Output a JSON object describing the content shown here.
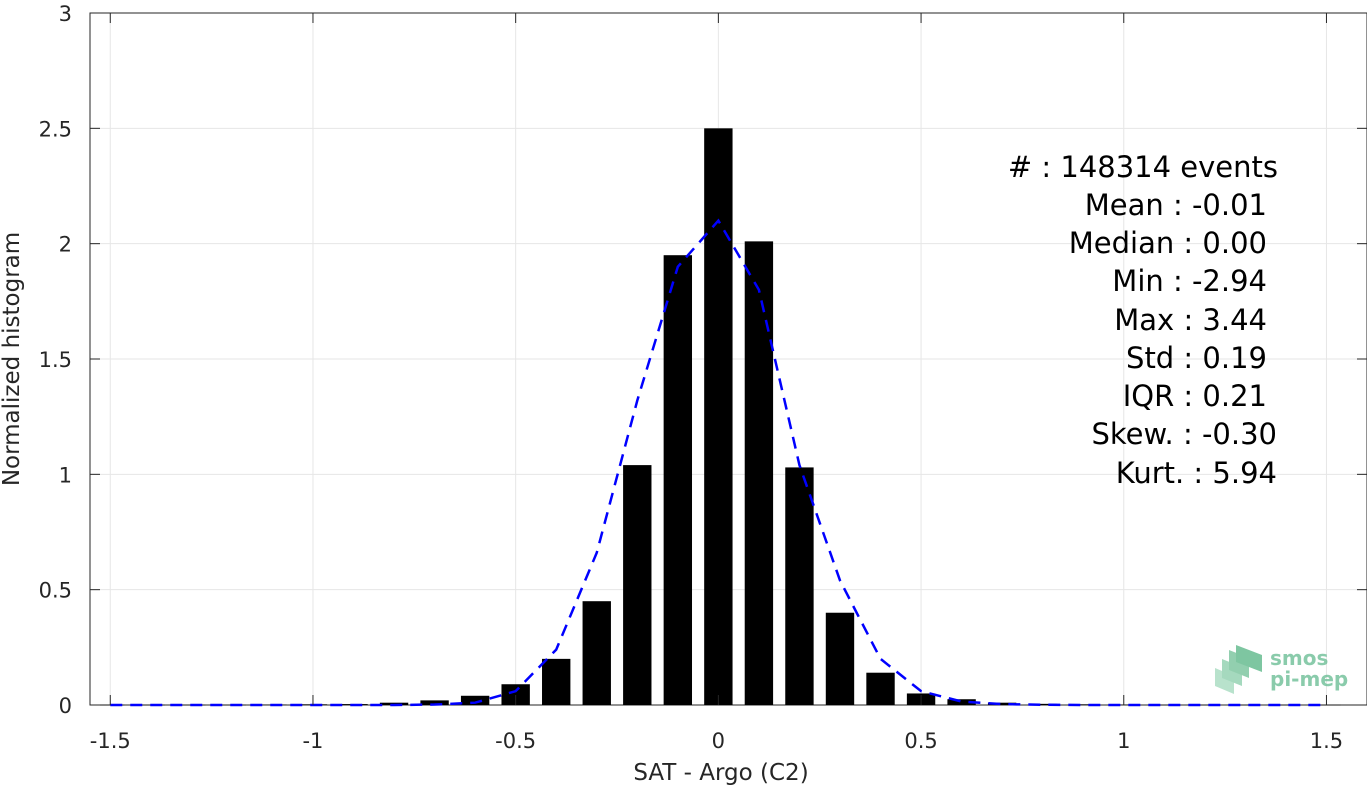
{
  "chart_data": {
    "type": "bar",
    "xlabel": "SAT - Argo (C2)",
    "ylabel": "Normalized histogram",
    "xlim": [
      -1.55,
      1.6
    ],
    "ylim": [
      0,
      3
    ],
    "xticks": [
      "-1.5",
      "-1",
      "-0.5",
      "0",
      "0.5",
      "1",
      "1.5"
    ],
    "yticks": [
      "0",
      "0.5",
      "1",
      "1.5",
      "2",
      "2.5",
      "3"
    ],
    "grid": true,
    "bar_color": "#000000",
    "fit_color": "#0000ff",
    "series": [
      {
        "type": "bar",
        "x": [
          -1.5,
          -1.4,
          -1.3,
          -1.2,
          -1.1,
          -1.0,
          -0.9,
          -0.8,
          -0.7,
          -0.6,
          -0.5,
          -0.4,
          -0.3,
          -0.2,
          -0.1,
          0.0,
          0.1,
          0.2,
          0.3,
          0.4,
          0.5,
          0.6,
          0.7,
          0.8,
          0.9,
          1.0,
          1.1,
          1.2,
          1.3,
          1.4,
          1.5
        ],
        "values": [
          0.001,
          0.001,
          0.001,
          0.001,
          0.002,
          0.003,
          0.004,
          0.01,
          0.02,
          0.04,
          0.09,
          0.2,
          0.45,
          1.04,
          1.95,
          2.5,
          2.01,
          1.03,
          0.4,
          0.14,
          0.05,
          0.025,
          0.01,
          0.005,
          0.003,
          0.002,
          0.001,
          0.001,
          0.001,
          0.001,
          0.001
        ]
      },
      {
        "type": "line",
        "style": "dashed",
        "x": [
          -1.5,
          -1.4,
          -1.3,
          -1.2,
          -1.1,
          -1.0,
          -0.9,
          -0.8,
          -0.7,
          -0.6,
          -0.5,
          -0.4,
          -0.3,
          -0.2,
          -0.1,
          0.0,
          0.1,
          0.2,
          0.3,
          0.4,
          0.5,
          0.6,
          0.7,
          0.8,
          0.9,
          1.0,
          1.1,
          1.2,
          1.3,
          1.4,
          1.5
        ],
        "values": [
          0.0,
          0.0,
          0.0,
          0.0,
          0.0,
          0.0,
          0.0,
          0.0,
          0.002,
          0.01,
          0.06,
          0.24,
          0.66,
          1.32,
          1.9,
          2.1,
          1.8,
          1.04,
          0.54,
          0.2,
          0.06,
          0.015,
          0.004,
          0.001,
          0.0,
          0.0,
          0.0,
          0.0,
          0.0,
          0.0,
          0.0
        ]
      }
    ]
  },
  "stats": [
    {
      "label": "#  : 148314 events"
    },
    {
      "label": "Mean : -0.01"
    },
    {
      "label": "Median : 0.00"
    },
    {
      "label": "Min : -2.94"
    },
    {
      "label": "Max : 3.44"
    },
    {
      "label": "Std : 0.19"
    },
    {
      "label": "IQR : 0.21"
    },
    {
      "label": "Skew. : -0.30"
    },
    {
      "label": "Kurt. : 5.94"
    }
  ],
  "logo": {
    "line1": "smos",
    "line2": "pi-mep",
    "color": "#6dbf97"
  }
}
